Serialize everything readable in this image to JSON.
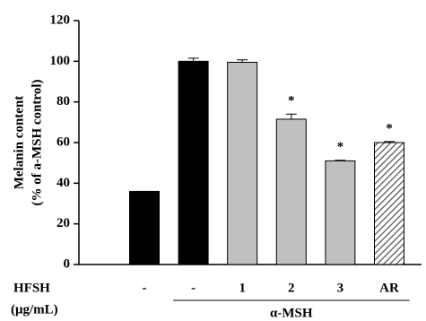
{
  "chart_data": {
    "type": "bar",
    "ylabel": [
      "Melanin content",
      "(% of a-MSH control)"
    ],
    "categories": [
      "-",
      "-",
      "1",
      "2",
      "3",
      "AR"
    ],
    "values": [
      36,
      100,
      99.5,
      71.5,
      51,
      60
    ],
    "errors": [
      null,
      1.5,
      1.2,
      2.5,
      0.3,
      0.5
    ],
    "colors": [
      "#000000",
      "#000000",
      "#c0c0c0",
      "#c0c0c0",
      "#c0c0c0",
      "#c0c0c0"
    ],
    "hatched": [
      false,
      false,
      false,
      false,
      false,
      true
    ],
    "annotations": [
      {
        "index": 3,
        "text": "*"
      },
      {
        "index": 4,
        "text": "*"
      },
      {
        "index": 5,
        "text": "*"
      }
    ],
    "row_label": "HFSH",
    "row_unit": "(μg/mL)",
    "group_label": {
      "from": 1,
      "to": 5,
      "text": "α-MSH"
    },
    "ylim": [
      0,
      120
    ],
    "yticks": [
      0,
      20,
      40,
      60,
      80,
      100,
      120
    ]
  }
}
